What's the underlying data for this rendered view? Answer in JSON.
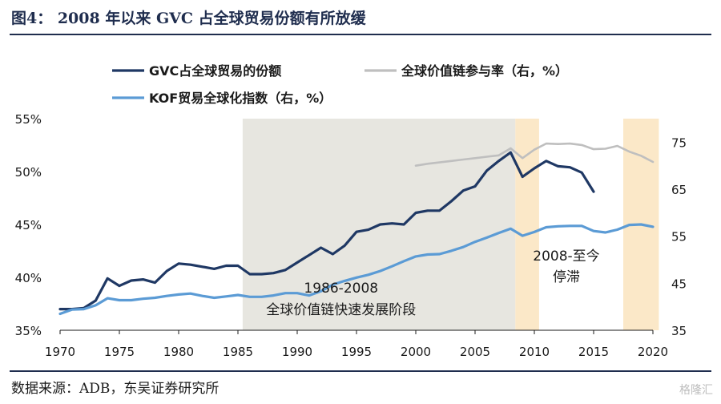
{
  "page": {
    "title": "图4： 2008 年以来 GVC 占全球贸易份额有所放缓",
    "source": "数据来源：ADB，东吴证券研究所",
    "watermark": "格隆汇"
  },
  "colors": {
    "gvc": "#1f3864",
    "participation": "#bfbfbf",
    "kof": "#5b9bd5",
    "gray_band": "#e7e6e0",
    "stagnation_band": "#fbe8c8",
    "title_rule": "#1f2d4e"
  },
  "chart_data": {
    "type": "line",
    "grid": false,
    "legend_position": "top",
    "x_axis": {
      "range": [
        1970,
        2020
      ],
      "ticks": [
        1970,
        1975,
        1980,
        1985,
        1990,
        1995,
        2000,
        2005,
        2010,
        2015,
        2020
      ]
    },
    "y_left": {
      "range": [
        35,
        55
      ],
      "ticks": [
        35,
        40,
        45,
        50,
        55
      ],
      "tick_labels": [
        "35%",
        "40%",
        "45%",
        "50%",
        "55%"
      ]
    },
    "y_right": {
      "range": [
        35,
        80
      ],
      "ticks": [
        35,
        45,
        55,
        65,
        75
      ],
      "tick_labels": [
        "35",
        "45",
        "55",
        "65",
        "75"
      ]
    },
    "shaded_periods": [
      {
        "from": 1985.4,
        "to": 2008.4,
        "style": "gray",
        "label_lines": [
          "1986-2008",
          "全球价值链快速发展阶段"
        ]
      },
      {
        "from": 2008.4,
        "to": 2010.4,
        "style": "stagnation",
        "label_lines": [
          "2008-至今",
          "停滞"
        ]
      },
      {
        "from": 2017.5,
        "to": 2020.5,
        "style": "stagnation",
        "label_lines": []
      }
    ],
    "series": [
      {
        "name": "GVC占全球贸易的份额",
        "axis": "left",
        "color_key": "gvc",
        "points": [
          [
            1970,
            37.0
          ],
          [
            1971,
            37.0
          ],
          [
            1972,
            37.1
          ],
          [
            1973,
            37.8
          ],
          [
            1974,
            39.9
          ],
          [
            1975,
            39.2
          ],
          [
            1976,
            39.7
          ],
          [
            1977,
            39.8
          ],
          [
            1978,
            39.5
          ],
          [
            1979,
            40.6
          ],
          [
            1980,
            41.3
          ],
          [
            1981,
            41.2
          ],
          [
            1982,
            41.0
          ],
          [
            1983,
            40.8
          ],
          [
            1984,
            41.1
          ],
          [
            1985,
            41.1
          ],
          [
            1986,
            40.3
          ],
          [
            1987,
            40.3
          ],
          [
            1988,
            40.4
          ],
          [
            1989,
            40.7
          ],
          [
            1990,
            41.4
          ],
          [
            1991,
            42.1
          ],
          [
            1992,
            42.8
          ],
          [
            1993,
            42.2
          ],
          [
            1994,
            43.0
          ],
          [
            1995,
            44.3
          ],
          [
            1996,
            44.5
          ],
          [
            1997,
            45.0
          ],
          [
            1998,
            45.1
          ],
          [
            1999,
            45.0
          ],
          [
            2000,
            46.1
          ],
          [
            2001,
            46.3
          ],
          [
            2002,
            46.3
          ],
          [
            2003,
            47.2
          ],
          [
            2004,
            48.2
          ],
          [
            2005,
            48.6
          ],
          [
            2006,
            50.1
          ],
          [
            2007,
            51.0
          ],
          [
            2008,
            51.8
          ],
          [
            2009,
            49.5
          ],
          [
            2010,
            50.3
          ],
          [
            2011,
            51.0
          ],
          [
            2012,
            50.5
          ],
          [
            2013,
            50.4
          ],
          [
            2014,
            49.9
          ],
          [
            2015,
            48.1
          ]
        ]
      },
      {
        "name": "全球价值链参与率（右，%）",
        "axis": "right",
        "color_key": "participation",
        "points": [
          [
            2000,
            70.0
          ],
          [
            2001,
            70.4
          ],
          [
            2002,
            70.7
          ],
          [
            2003,
            71.0
          ],
          [
            2004,
            71.3
          ],
          [
            2005,
            71.6
          ],
          [
            2006,
            71.9
          ],
          [
            2007,
            72.2
          ],
          [
            2008,
            73.7
          ],
          [
            2009,
            71.6
          ],
          [
            2010,
            73.4
          ],
          [
            2011,
            74.7
          ],
          [
            2012,
            74.6
          ],
          [
            2013,
            74.7
          ],
          [
            2014,
            74.4
          ],
          [
            2015,
            73.5
          ],
          [
            2016,
            73.6
          ],
          [
            2017,
            74.2
          ],
          [
            2018,
            73.0
          ],
          [
            2019,
            72.1
          ],
          [
            2020,
            70.8
          ]
        ]
      },
      {
        "name": "KOF贸易全球化指数（右，%）",
        "axis": "right",
        "color_key": "kof",
        "points": [
          [
            1970,
            38.5
          ],
          [
            1971,
            39.4
          ],
          [
            1972,
            39.5
          ],
          [
            1973,
            40.3
          ],
          [
            1974,
            41.8
          ],
          [
            1975,
            41.4
          ],
          [
            1976,
            41.4
          ],
          [
            1977,
            41.7
          ],
          [
            1978,
            41.9
          ],
          [
            1979,
            42.3
          ],
          [
            1980,
            42.6
          ],
          [
            1981,
            42.8
          ],
          [
            1982,
            42.3
          ],
          [
            1983,
            41.9
          ],
          [
            1984,
            42.2
          ],
          [
            1985,
            42.5
          ],
          [
            1986,
            42.1
          ],
          [
            1987,
            42.1
          ],
          [
            1988,
            42.4
          ],
          [
            1989,
            42.9
          ],
          [
            1990,
            42.9
          ],
          [
            1991,
            42.4
          ],
          [
            1992,
            43.3
          ],
          [
            1993,
            44.7
          ],
          [
            1994,
            45.5
          ],
          [
            1995,
            46.2
          ],
          [
            1996,
            46.8
          ],
          [
            1997,
            47.6
          ],
          [
            1998,
            48.6
          ],
          [
            1999,
            49.7
          ],
          [
            2000,
            50.7
          ],
          [
            2001,
            51.1
          ],
          [
            2002,
            51.2
          ],
          [
            2003,
            51.9
          ],
          [
            2004,
            52.7
          ],
          [
            2005,
            53.8
          ],
          [
            2006,
            54.7
          ],
          [
            2007,
            55.7
          ],
          [
            2008,
            56.6
          ],
          [
            2009,
            55.1
          ],
          [
            2010,
            55.9
          ],
          [
            2011,
            56.9
          ],
          [
            2012,
            57.1
          ],
          [
            2013,
            57.2
          ],
          [
            2014,
            57.2
          ],
          [
            2015,
            56.1
          ],
          [
            2016,
            55.8
          ],
          [
            2017,
            56.4
          ],
          [
            2018,
            57.4
          ],
          [
            2019,
            57.5
          ],
          [
            2020,
            57.0
          ]
        ]
      }
    ]
  }
}
